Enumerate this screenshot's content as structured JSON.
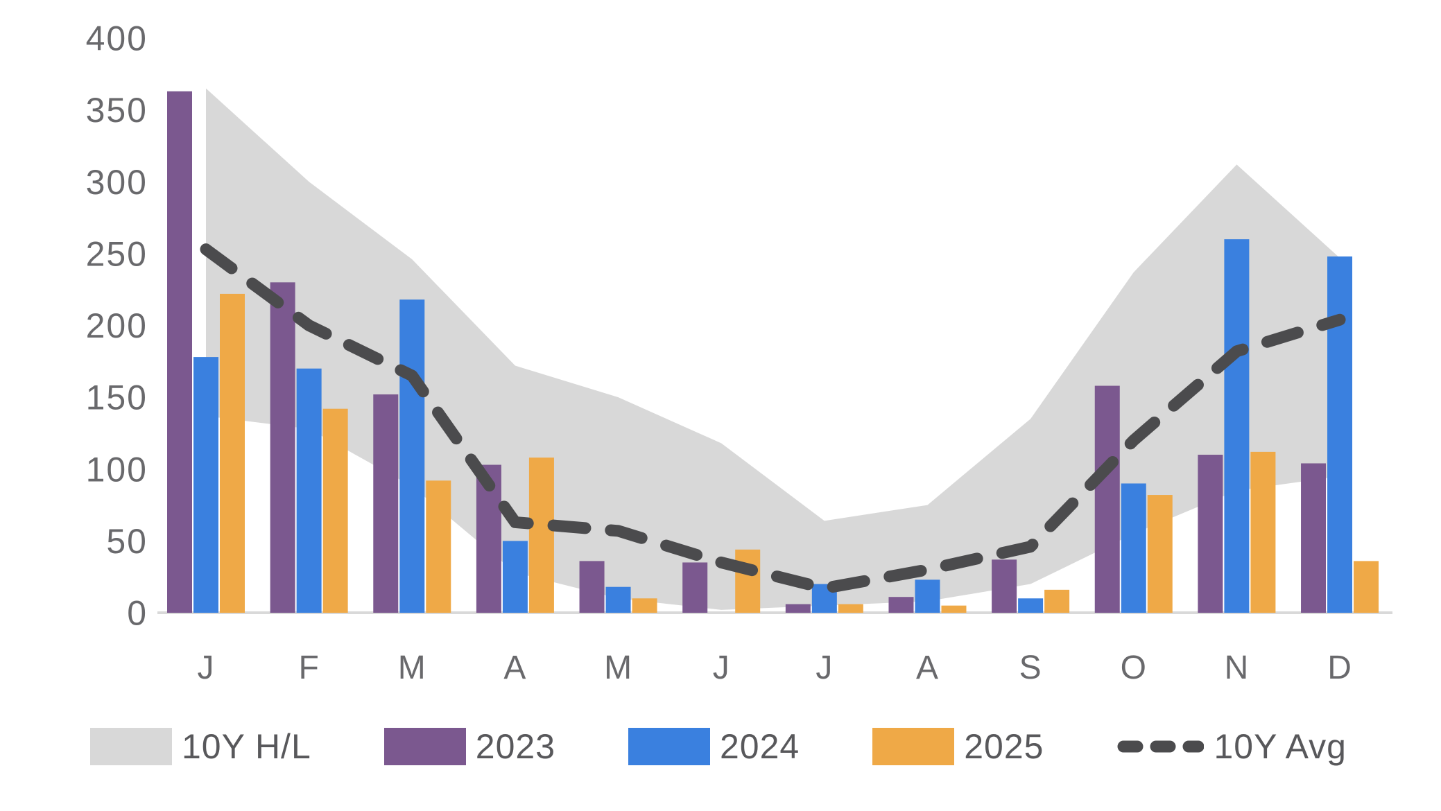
{
  "chart_data": {
    "type": "combo",
    "title": "",
    "xlabel": "",
    "ylabel": "",
    "categories": [
      "J",
      "F",
      "M",
      "A",
      "M",
      "J",
      "J",
      "A",
      "S",
      "O",
      "N",
      "D"
    ],
    "series": [
      {
        "name": "10Y H/L",
        "type": "band",
        "color": "#d8d8d8",
        "high": [
          365,
          300,
          246,
          172,
          150,
          118,
          64,
          75,
          135,
          237,
          312,
          247
        ],
        "low": [
          137,
          128,
          88,
          28,
          10,
          2,
          5,
          8,
          20,
          55,
          85,
          95
        ]
      },
      {
        "name": "2023",
        "type": "bar",
        "color": "#7b588f",
        "values": [
          363,
          230,
          152,
          103,
          36,
          35,
          6,
          11,
          37,
          158,
          110,
          104
        ]
      },
      {
        "name": "2024",
        "type": "bar",
        "color": "#3a80df",
        "values": [
          178,
          170,
          218,
          50,
          18,
          0,
          20,
          23,
          10,
          90,
          260,
          248
        ]
      },
      {
        "name": "2025",
        "type": "bar",
        "color": "#efa947",
        "values": [
          222,
          142,
          92,
          108,
          10,
          44,
          6,
          5,
          16,
          82,
          112,
          36
        ]
      },
      {
        "name": "10Y Avg",
        "type": "line",
        "dashed": true,
        "color": "#4b4b4d",
        "values": [
          253,
          200,
          165,
          63,
          57,
          35,
          17,
          30,
          46,
          120,
          182,
          204
        ]
      }
    ],
    "ylim": [
      0,
      400
    ],
    "y_ticks": [
      400,
      350,
      300,
      250,
      200,
      150,
      100,
      50,
      0
    ],
    "grid": false,
    "legend_position": "bottom",
    "axis_text_color": "#69696c",
    "axis_line_color": "#d9d9d9"
  }
}
